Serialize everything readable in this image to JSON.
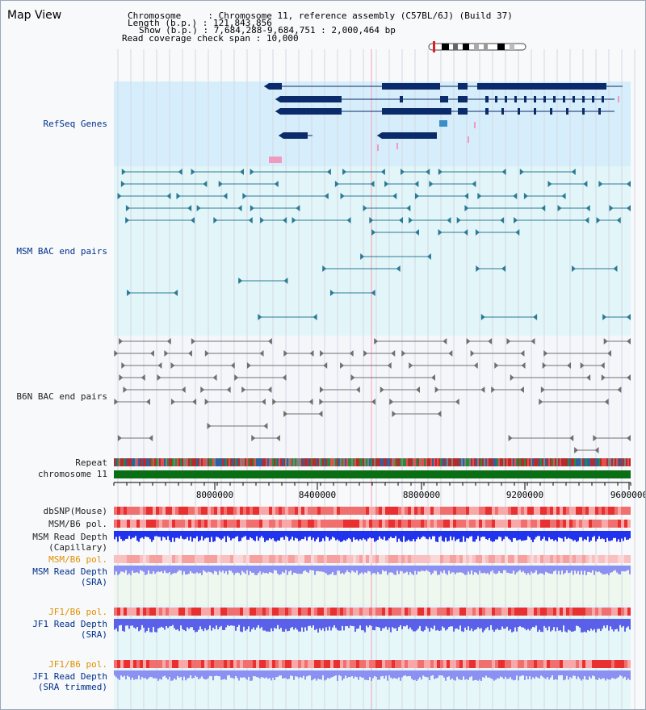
{
  "title": "Map View",
  "info": {
    "chromosome_key": "Chromosome",
    "chromosome_val": "Chromosome 11, reference assembly (C57BL/6J) (Build 37)",
    "length_key": "Length (b.p.)",
    "length_val": "121,843,856",
    "show_key": "Show (b.p.)",
    "show_val": "7,684,288-9,684,751 : 2,000,464 bp",
    "span_key": "Read coverage check span",
    "span_val": "10,000"
  },
  "tracks": {
    "refseq": "RefSeq Genes",
    "msm_bac": "MSM BAC end pairs",
    "b6n_bac": "B6N BAC end pairs",
    "repeat": "Repeat",
    "chromosome": "chromosome 11",
    "dbsnp": "dbSNP(Mouse)",
    "msm_b6_pol": "MSM/B6 pol.",
    "msm_depth_cap_1": "MSM Read Depth",
    "msm_depth_cap_2": "(Capillary)",
    "msm_b6_pol2": "MSM/B6 pol.",
    "msm_depth_sra_1": "MSM Read Depth",
    "msm_depth_sra_2": "(SRA)",
    "jf1_pol": "JF1/B6 pol.",
    "jf1_depth_1": "JF1 Read Depth",
    "jf1_depth_2": "(SRA)",
    "jf1_pol2": "JF1/B6 pol.",
    "jf1_trim_1": "JF1 Read Depth",
    "jf1_trim_2": "(SRA trimmed)"
  },
  "axis": {
    "ticks": [
      "8000000",
      "8400000",
      "8800000",
      "9200000",
      "9600000"
    ]
  },
  "colors": {
    "refseq_bg": "#d6eefb",
    "msm_bg": "#e2f5f8",
    "gene": "#0a2a6a",
    "msm_pair": "#2a7a95",
    "b6n_pair": "#707070",
    "chromosome": "#0a6e14",
    "snp": "#ef3030",
    "depth": "#2233ee",
    "sra_depth": "#8c90f2"
  }
}
